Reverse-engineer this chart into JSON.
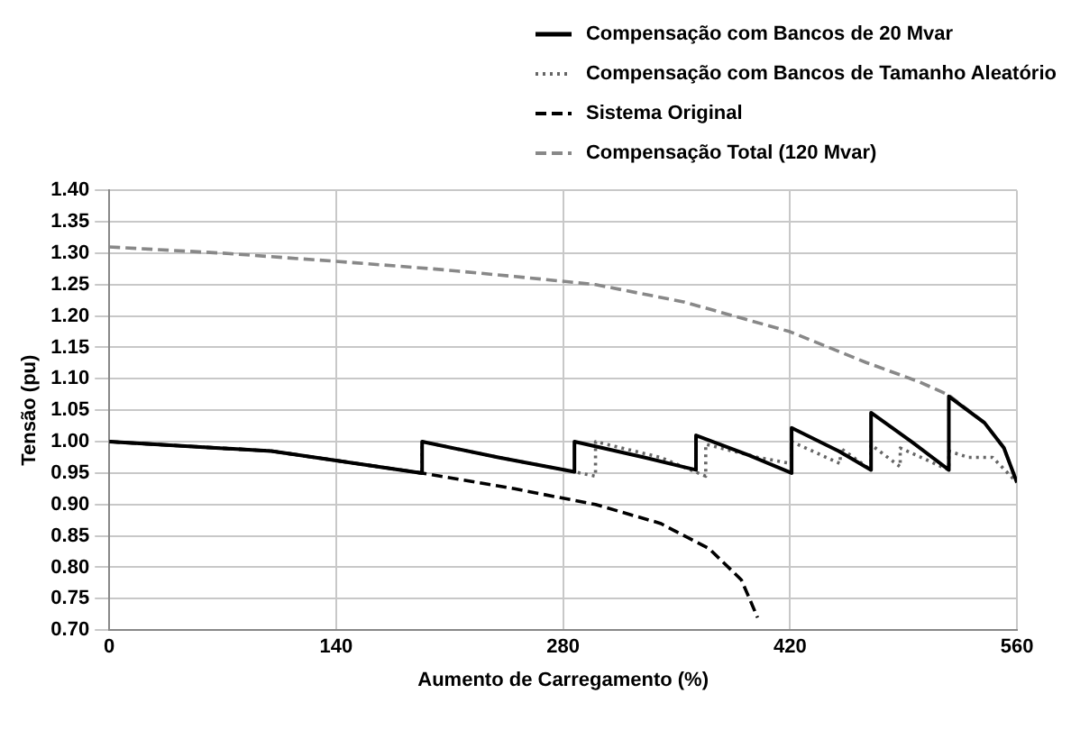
{
  "chart_data": {
    "type": "line",
    "xlabel": "Aumento de Carregamento (%)",
    "ylabel": "Tensão (pu)",
    "xlim": [
      0,
      560
    ],
    "xticks": [
      0,
      140,
      280,
      420,
      560
    ],
    "ylim": [
      0.7,
      1.4
    ],
    "yticks": [
      {
        "value": 0.7,
        "label": "0.70"
      },
      {
        "value": 0.75,
        "label": "0.75"
      },
      {
        "value": 0.8,
        "label": "0.80"
      },
      {
        "value": 0.85,
        "label": "0.85"
      },
      {
        "value": 0.9,
        "label": "0.90"
      },
      {
        "value": 0.95,
        "label": "0.95"
      },
      {
        "value": 1.0,
        "label": "1.00"
      },
      {
        "value": 1.05,
        "label": "1.05"
      },
      {
        "value": 1.1,
        "label": "1.10"
      },
      {
        "value": 1.15,
        "label": "1.15"
      },
      {
        "value": 1.2,
        "label": "1.20"
      },
      {
        "value": 1.25,
        "label": "1.25"
      },
      {
        "value": 1.3,
        "label": "1.30"
      },
      {
        "value": 1.35,
        "label": "1.35"
      },
      {
        "value": 1.4,
        "label": "1.40"
      }
    ],
    "grid": true,
    "legend": "top right",
    "marker": "none",
    "series": [
      {
        "name": "Compensação com Bancos de 20 Mvar",
        "color": "#000000",
        "line_style": "solid",
        "x": [
          0,
          100,
          193,
          193,
          240,
          287,
          287,
          330,
          362,
          362,
          395,
          421,
          421,
          450,
          470,
          470,
          495,
          518,
          518,
          540,
          552,
          560
        ],
        "values": [
          1.0,
          0.985,
          0.95,
          1.0,
          0.975,
          0.952,
          1.0,
          0.975,
          0.955,
          1.01,
          0.978,
          0.95,
          1.022,
          0.985,
          0.955,
          1.046,
          1.0,
          0.955,
          1.072,
          1.03,
          0.99,
          0.935
        ]
      },
      {
        "name": "Compensação com Bancos de Tamanho Aleatório",
        "color": "#666666",
        "line_style": "dotted",
        "x": [
          0,
          100,
          193,
          193,
          240,
          287,
          300,
          300,
          340,
          368,
          368,
          400,
          421,
          421,
          451,
          451,
          470,
          470,
          488,
          488,
          518,
          518,
          530,
          545,
          560
        ],
        "values": [
          1.0,
          0.985,
          0.95,
          1.0,
          0.975,
          0.952,
          0.945,
          1.0,
          0.975,
          0.945,
          0.996,
          0.975,
          0.965,
          1.0,
          0.965,
          0.99,
          0.955,
          0.995,
          0.96,
          0.99,
          0.955,
          0.985,
          0.975,
          0.975,
          0.935
        ]
      },
      {
        "name": "Sistema Original",
        "color": "#000000",
        "line_style": "dashed",
        "x": [
          0,
          100,
          193,
          250,
          300,
          340,
          370,
          390,
          400
        ],
        "values": [
          1.0,
          0.985,
          0.95,
          0.925,
          0.9,
          0.87,
          0.83,
          0.78,
          0.72
        ]
      },
      {
        "name": "Compensação Total (120 Mvar)",
        "color": "#888888",
        "line_style": "dashed",
        "x": [
          0,
          70,
          140,
          200,
          250,
          300,
          355,
          420,
          467,
          500,
          518,
          540,
          552,
          560
        ],
        "values": [
          1.31,
          1.3,
          1.287,
          1.275,
          1.263,
          1.25,
          1.222,
          1.175,
          1.126,
          1.095,
          1.074,
          1.03,
          0.99,
          0.935
        ]
      }
    ]
  }
}
